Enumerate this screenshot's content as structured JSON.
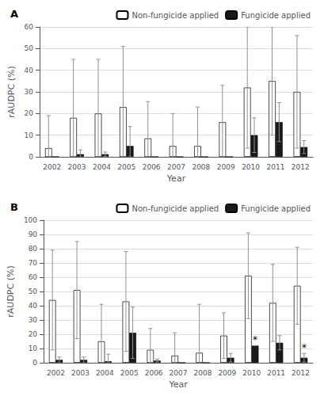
{
  "chart_data": [
    {
      "type": "bar",
      "title": "A",
      "xlabel": "Year",
      "ylabel": "rAUDPC (%)",
      "categories": [
        "2002",
        "2003",
        "2004",
        "2005",
        "2006",
        "2007",
        "2008",
        "2009",
        "2010",
        "2011",
        "2012"
      ],
      "series": [
        {
          "name": "Non-fungicide applied",
          "color": "#ffffff",
          "values": [
            4,
            18,
            20,
            23,
            8.5,
            5,
            5,
            16,
            32,
            35,
            30
          ],
          "error_minus": [
            4,
            18,
            20,
            23,
            8.5,
            5,
            5,
            16,
            28,
            25,
            26
          ],
          "error_plus": [
            15,
            27,
            25,
            28,
            17,
            15,
            18,
            17,
            28,
            25,
            26
          ]
        },
        {
          "name": "Fungicide applied",
          "color": "#1a1a1a",
          "values": [
            0,
            1.2,
            1.2,
            5,
            0,
            0,
            0,
            0,
            10,
            16,
            4.5
          ],
          "error_minus": [
            0,
            1.2,
            1,
            5,
            0,
            0,
            0,
            0,
            8,
            9,
            3
          ],
          "error_plus": [
            0,
            2,
            1,
            9,
            0,
            0,
            0,
            0,
            8,
            9,
            3
          ]
        }
      ],
      "ylim": [
        0,
        60
      ],
      "yticks": [
        0,
        10,
        20,
        30,
        40,
        50,
        60
      ],
      "grid": true,
      "legend": "upper right"
    },
    {
      "type": "bar",
      "title": "B",
      "xlabel": "Year",
      "ylabel": "rAUDPC (%)",
      "categories": [
        "2002",
        "2003",
        "2004",
        "2005",
        "2006",
        "2007",
        "2008",
        "2009",
        "2010",
        "2011",
        "2012"
      ],
      "series": [
        {
          "name": "Non-fungicide applied",
          "color": "#ffffff",
          "values": [
            44,
            51,
            15,
            43,
            9,
            5,
            7,
            19,
            61,
            42,
            54
          ],
          "error_minus": [
            35,
            34,
            15,
            35,
            9,
            5,
            7,
            16,
            30,
            27,
            27
          ],
          "error_plus": [
            35,
            34,
            26,
            35,
            15,
            16,
            34,
            16,
            30,
            27,
            27
          ]
        },
        {
          "name": "Fungicide applied",
          "color": "#1a1a1a",
          "values": [
            2,
            2,
            1,
            21,
            1.5,
            0,
            0,
            3.5,
            12,
            14,
            3.5
          ],
          "error_minus": [
            2,
            2,
            1,
            18,
            1,
            0,
            0,
            3,
            0,
            5,
            3
          ],
          "error_plus": [
            2,
            2,
            5,
            18,
            1,
            0,
            0,
            3,
            0,
            5,
            3
          ]
        }
      ],
      "annotations": [
        {
          "text": "*",
          "category": "2010",
          "series": "Fungicide applied"
        },
        {
          "text": "*",
          "category": "2012",
          "series": "Fungicide applied"
        }
      ],
      "ylim": [
        0,
        100
      ],
      "yticks": [
        0,
        10,
        20,
        30,
        40,
        50,
        60,
        70,
        80,
        90,
        100
      ],
      "grid": true,
      "legend": "upper right"
    }
  ]
}
